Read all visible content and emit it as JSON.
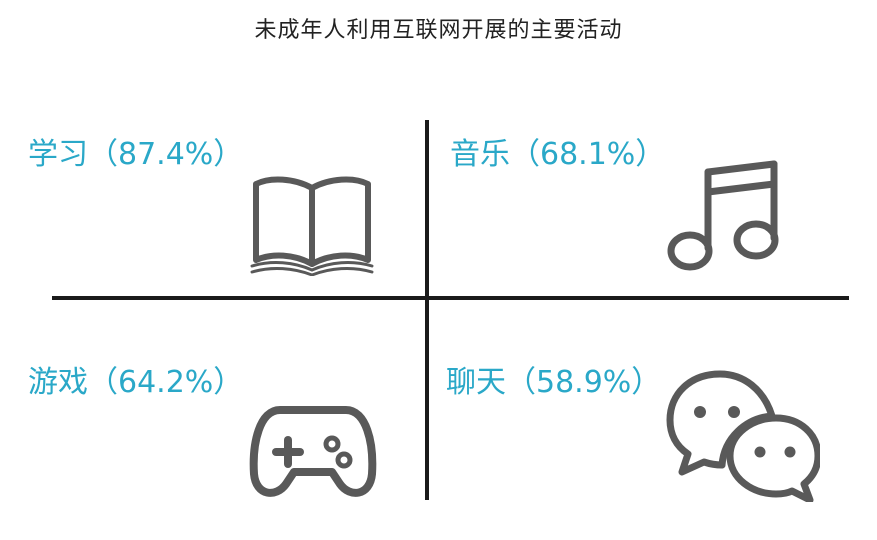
{
  "title": "未成年人利用互联网开展的主要活动",
  "colors": {
    "accent": "#2aa8c8",
    "icon": "#595959",
    "axis": "#1a1a1a",
    "title": "#222222"
  },
  "quadrants": [
    {
      "label": "学习（87.4%）",
      "activity": "学习",
      "percent": 87.4,
      "icon": "open-book-icon"
    },
    {
      "label": "音乐（68.1%）",
      "activity": "音乐",
      "percent": 68.1,
      "icon": "music-note-icon"
    },
    {
      "label": "游戏（64.2%）",
      "activity": "游戏",
      "percent": 64.2,
      "icon": "game-controller-icon"
    },
    {
      "label": "聊天（58.9%）",
      "activity": "聊天",
      "percent": 58.9,
      "icon": "chat-bubbles-icon"
    }
  ]
}
